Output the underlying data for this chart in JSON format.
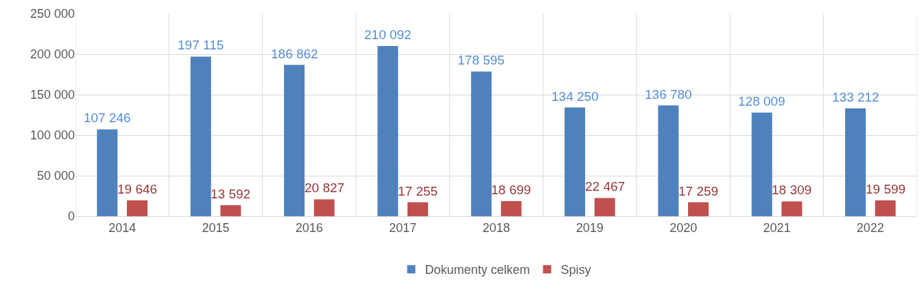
{
  "chart_data": {
    "type": "bar",
    "categories": [
      "2014",
      "2015",
      "2016",
      "2017",
      "2018",
      "2019",
      "2020",
      "2021",
      "2022"
    ],
    "series": [
      {
        "name": "Dokumenty celkem",
        "color": "#4f81bd",
        "values": [
          107246,
          197115,
          186862,
          210092,
          178595,
          134250,
          136780,
          128009,
          133212
        ],
        "value_labels": [
          "107 246",
          "197 115",
          "186 862",
          "210 092",
          "178 595",
          "134 250",
          "136 780",
          "128 009",
          "133 212"
        ]
      },
      {
        "name": "Spisy",
        "color": "#c0504d",
        "values": [
          19646,
          13592,
          20827,
          17255,
          18699,
          22467,
          17259,
          18309,
          19599
        ],
        "value_labels": [
          "19 646",
          "13 592",
          "20 827",
          "17 255",
          "18 699",
          "22 467",
          "17 259",
          "18 309",
          "19 599"
        ]
      }
    ],
    "ylim": [
      0,
      250000
    ],
    "yticks": [
      {
        "value": 0,
        "label": "0"
      },
      {
        "value": 50000,
        "label": "50 000"
      },
      {
        "value": 100000,
        "label": "100 000"
      },
      {
        "value": 150000,
        "label": "150 000"
      },
      {
        "value": 200000,
        "label": "200 000"
      },
      {
        "value": 250000,
        "label": "250 000"
      }
    ],
    "grid": true,
    "legend": "bottom"
  }
}
